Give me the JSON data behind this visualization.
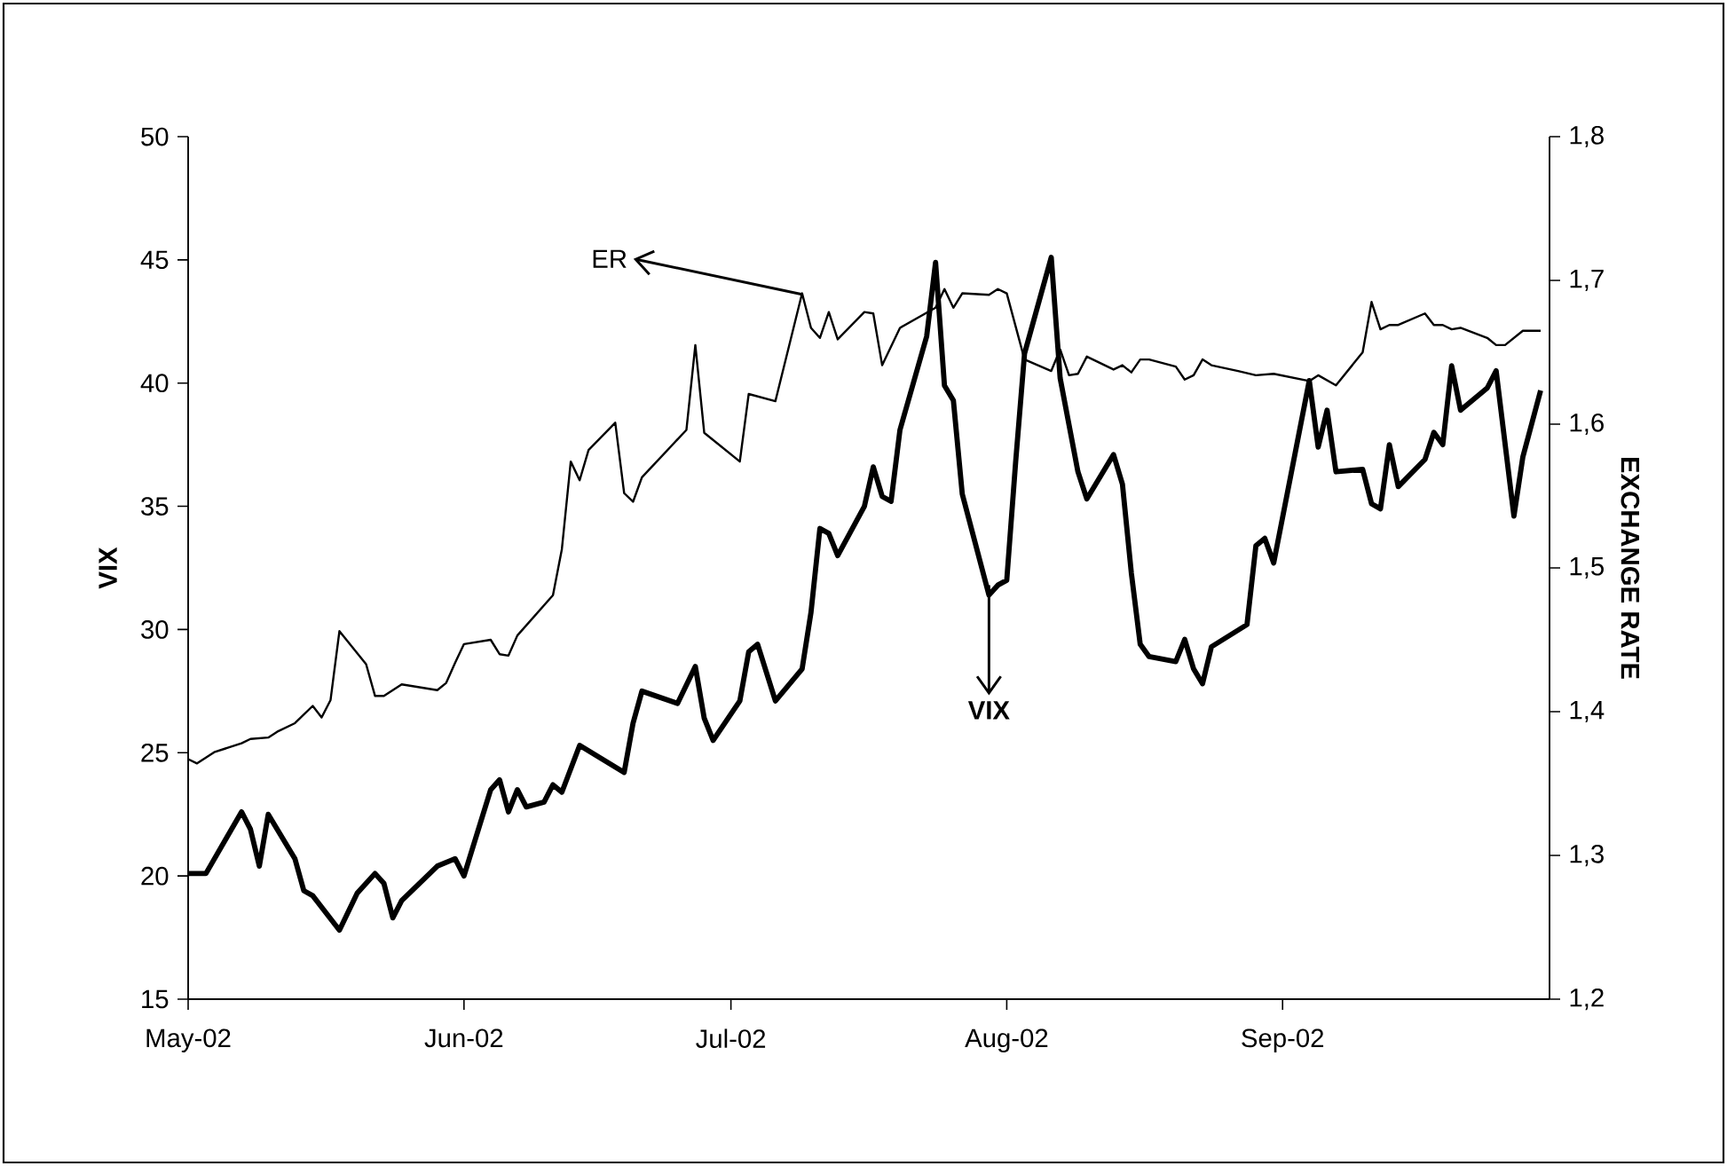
{
  "chart_data": {
    "type": "line",
    "ylabel": "VIX",
    "y2label": "EXCHANGE RATE",
    "xlim": [
      "2002-05-01",
      "2002-10-01"
    ],
    "xticks": [
      {
        "value": "2002-05-01",
        "label": "May-02"
      },
      {
        "value": "2002-06-01",
        "label": "Jun-02"
      },
      {
        "value": "2002-07-01",
        "label": "Jul-02"
      },
      {
        "value": "2002-08-01",
        "label": "Aug-02"
      },
      {
        "value": "2002-09-01",
        "label": "Sep-02"
      }
    ],
    "ylim": [
      15,
      50
    ],
    "yticks": [
      15,
      20,
      25,
      30,
      35,
      40,
      45,
      50
    ],
    "y2lim": [
      1.2,
      1.8
    ],
    "y2ticks": [
      {
        "value": 1.2,
        "label": "1,2"
      },
      {
        "value": 1.3,
        "label": "1,3"
      },
      {
        "value": 1.4,
        "label": "1,4"
      },
      {
        "value": 1.5,
        "label": "1,5"
      },
      {
        "value": 1.6,
        "label": "1,6"
      },
      {
        "value": 1.7,
        "label": "1,7"
      },
      {
        "value": 1.8,
        "label": "1,8"
      }
    ],
    "series": [
      {
        "color": "#000000",
        "x": [
          "2002-05-01",
          "2002-05-03",
          "2002-05-07",
          "2002-05-08",
          "2002-05-09",
          "2002-05-10",
          "2002-05-13",
          "2002-05-14",
          "2002-05-15",
          "2002-05-18",
          "2002-05-20",
          "2002-05-22",
          "2002-05-23",
          "2002-05-24",
          "2002-05-25",
          "2002-05-29",
          "2002-05-31",
          "2002-06-01",
          "2002-06-04",
          "2002-06-05",
          "2002-06-06",
          "2002-06-07",
          "2002-06-08",
          "2002-06-10",
          "2002-06-11",
          "2002-06-12",
          "2002-06-14",
          "2002-06-19",
          "2002-06-20",
          "2002-06-21",
          "2002-06-25",
          "2002-06-27",
          "2002-06-28",
          "2002-06-29",
          "2002-07-02",
          "2002-07-03",
          "2002-07-04",
          "2002-07-06",
          "2002-07-09",
          "2002-07-10",
          "2002-07-11",
          "2002-07-12",
          "2002-07-13",
          "2002-07-16",
          "2002-07-17",
          "2002-07-18",
          "2002-07-19",
          "2002-07-20",
          "2002-07-23",
          "2002-07-24",
          "2002-07-25",
          "2002-07-26",
          "2002-07-27",
          "2002-07-30",
          "2002-07-31",
          "2002-08-01",
          "2002-08-02",
          "2002-08-03",
          "2002-08-06",
          "2002-08-07",
          "2002-08-09",
          "2002-08-10",
          "2002-08-13",
          "2002-08-14",
          "2002-08-15",
          "2002-08-16",
          "2002-08-17",
          "2002-08-20",
          "2002-08-21",
          "2002-08-22",
          "2002-08-23",
          "2002-08-24",
          "2002-08-28",
          "2002-08-29",
          "2002-08-30",
          "2002-08-31",
          "2002-09-04",
          "2002-09-05",
          "2002-09-06",
          "2002-09-07",
          "2002-09-10",
          "2002-09-11",
          "2002-09-12",
          "2002-09-13",
          "2002-09-14",
          "2002-09-17",
          "2002-09-18",
          "2002-09-19",
          "2002-09-20",
          "2002-09-21",
          "2002-09-24",
          "2002-09-25",
          "2002-09-27",
          "2002-09-28",
          "2002-09-30"
        ],
        "values": [
          20.1,
          20.1,
          22.6,
          21.9,
          20.4,
          22.5,
          20.7,
          19.4,
          19.2,
          17.8,
          19.3,
          20.1,
          19.7,
          18.3,
          19.0,
          20.4,
          20.7,
          20.0,
          23.5,
          23.9,
          22.6,
          23.5,
          22.8,
          23.0,
          23.7,
          23.4,
          25.3,
          24.2,
          26.2,
          27.5,
          27.0,
          28.5,
          26.4,
          25.5,
          27.1,
          29.1,
          29.4,
          27.1,
          28.4,
          30.7,
          34.1,
          33.9,
          33.0,
          35.0,
          36.6,
          35.4,
          35.2,
          38.1,
          41.9,
          44.9,
          39.9,
          39.3,
          35.5,
          31.4,
          31.8,
          32.0,
          36.8,
          41.2,
          45.1,
          40.2,
          36.4,
          35.3,
          37.1,
          35.9,
          32.3,
          29.4,
          28.9,
          28.7,
          29.6,
          28.4,
          27.8,
          29.3,
          30.2,
          33.4,
          33.7,
          32.7,
          40.1,
          37.4,
          38.9,
          36.4,
          36.5,
          35.1,
          34.9,
          37.5,
          35.8,
          36.9,
          38.0,
          37.5,
          40.7,
          38.9,
          39.8,
          40.5,
          34.6,
          37.0,
          39.7
        ]
      },
      {
        "color": "#000000",
        "axis": "y2",
        "x": [
          "2002-05-01",
          "2002-05-02",
          "2002-05-04",
          "2002-05-07",
          "2002-05-08",
          "2002-05-10",
          "2002-05-11",
          "2002-05-13",
          "2002-05-15",
          "2002-05-16",
          "2002-05-17",
          "2002-05-18",
          "2002-05-21",
          "2002-05-22",
          "2002-05-23",
          "2002-05-25",
          "2002-05-29",
          "2002-05-30",
          "2002-05-31",
          "2002-06-01",
          "2002-06-04",
          "2002-06-05",
          "2002-06-06",
          "2002-06-07",
          "2002-06-11",
          "2002-06-12",
          "2002-06-13",
          "2002-06-14",
          "2002-06-15",
          "2002-06-18",
          "2002-06-19",
          "2002-06-20",
          "2002-06-21",
          "2002-06-26",
          "2002-06-27",
          "2002-06-28",
          "2002-07-02",
          "2002-07-03",
          "2002-07-06",
          "2002-07-09",
          "2002-07-10",
          "2002-07-11",
          "2002-07-12",
          "2002-07-13",
          "2002-07-16",
          "2002-07-17",
          "2002-07-18",
          "2002-07-20",
          "2002-07-24",
          "2002-07-25",
          "2002-07-26",
          "2002-07-27",
          "2002-07-30",
          "2002-07-31",
          "2002-08-01",
          "2002-08-03",
          "2002-08-06",
          "2002-08-07",
          "2002-08-08",
          "2002-08-09",
          "2002-08-10",
          "2002-08-13",
          "2002-08-14",
          "2002-08-15",
          "2002-08-16",
          "2002-08-17",
          "2002-08-20",
          "2002-08-21",
          "2002-08-22",
          "2002-08-23",
          "2002-08-24",
          "2002-08-27",
          "2002-08-29",
          "2002-08-31",
          "2002-09-04",
          "2002-09-05",
          "2002-09-07",
          "2002-09-10",
          "2002-09-11",
          "2002-09-12",
          "2002-09-13",
          "2002-09-14",
          "2002-09-17",
          "2002-09-18",
          "2002-09-19",
          "2002-09-20",
          "2002-09-21",
          "2002-09-24",
          "2002-09-25",
          "2002-09-26",
          "2002-09-28",
          "2002-09-30"
        ],
        "values": [
          1.367,
          1.364,
          1.372,
          1.378,
          1.381,
          1.382,
          1.386,
          1.392,
          1.404,
          1.396,
          1.408,
          1.456,
          1.433,
          1.411,
          1.411,
          1.419,
          1.415,
          1.42,
          1.434,
          1.447,
          1.45,
          1.44,
          1.439,
          1.453,
          1.481,
          1.513,
          1.574,
          1.561,
          1.582,
          1.601,
          1.552,
          1.546,
          1.563,
          1.596,
          1.655,
          1.594,
          1.574,
          1.621,
          1.616,
          1.691,
          1.667,
          1.66,
          1.678,
          1.659,
          1.678,
          1.677,
          1.641,
          1.667,
          1.681,
          1.694,
          1.681,
          1.691,
          1.69,
          1.694,
          1.691,
          1.645,
          1.637,
          1.652,
          1.634,
          1.635,
          1.647,
          1.638,
          1.641,
          1.636,
          1.645,
          1.645,
          1.64,
          1.631,
          1.634,
          1.645,
          1.641,
          1.637,
          1.634,
          1.635,
          1.63,
          1.634,
          1.627,
          1.65,
          1.685,
          1.666,
          1.669,
          1.669,
          1.677,
          1.669,
          1.669,
          1.666,
          1.667,
          1.66,
          1.655,
          1.655,
          1.665,
          1.665
        ]
      }
    ],
    "annotations": [
      {
        "text": "ER",
        "x": "2002-07-09",
        "y": 43.6
      },
      {
        "text": "VIX",
        "x": "2002-07-30",
        "y": 31.8
      }
    ]
  }
}
